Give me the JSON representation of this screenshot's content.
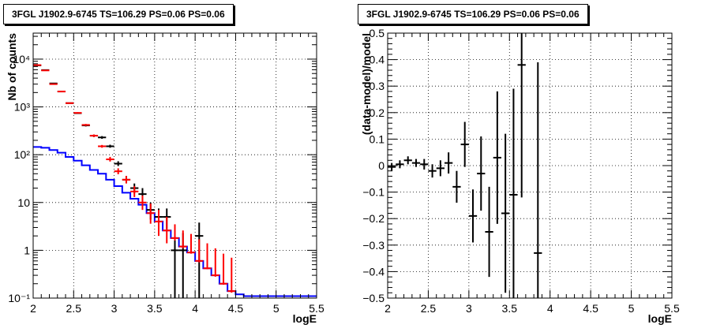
{
  "chart_data": [
    {
      "type": "line",
      "title": "3FGL J1902.9-6745 TS=106.29 PS=0.06 PS=0.06",
      "xlabel": "logE",
      "ylabel": "Nb of counts",
      "xlim": [
        2,
        5.5
      ],
      "ylim": [
        0.1,
        35000
      ],
      "yscale": "log",
      "grid": true,
      "x_ticks": [
        "2",
        "2.5",
        "3",
        "3.5",
        "4",
        "4.5",
        "5",
        "5.5"
      ],
      "y_ticks": [
        "10⁻¹",
        "1",
        "10",
        "10²",
        "10³",
        "10⁴"
      ],
      "colors": {
        "model": "#0000ff",
        "sum_model": "#ff0000",
        "data": "#000000"
      },
      "series": [
        {
          "kind": "step",
          "color": "#0000ff",
          "x_edges": [
            2.0,
            2.1,
            2.2,
            2.3,
            2.4,
            2.5,
            2.6,
            2.7,
            2.8,
            2.9,
            3.0,
            3.1,
            3.2,
            3.3,
            3.4,
            3.5,
            3.6,
            3.7,
            3.8,
            3.9,
            4.0,
            4.1,
            4.2,
            4.3,
            4.4,
            4.5,
            4.6,
            5.5
          ],
          "values": [
            145,
            140,
            125,
            110,
            90,
            75,
            60,
            48,
            40,
            30,
            22,
            16,
            12,
            9,
            6,
            4,
            2.6,
            1.8,
            1.2,
            0.9,
            0.6,
            0.42,
            0.3,
            0.2,
            0.14,
            0.12,
            0.11
          ]
        },
        {
          "kind": "errorbar",
          "color": "#ff0000",
          "x": [
            2.05,
            2.15,
            2.25,
            2.35,
            2.45,
            2.55,
            2.65,
            2.75,
            2.85,
            2.95,
            3.05,
            3.15,
            3.25,
            3.35,
            3.45,
            3.55,
            3.65,
            3.75,
            3.85,
            3.95,
            4.05,
            4.15,
            4.25,
            4.35,
            4.45
          ],
          "y": [
            7500,
            5800,
            3000,
            2100,
            1200,
            750,
            420,
            250,
            150,
            80,
            45,
            30,
            17,
            10,
            6,
            4,
            2.6,
            1.8,
            1.2,
            0.9,
            0.6,
            0.42,
            0.3,
            0.2,
            0.14
          ],
          "y_err_low": [
            7400,
            5700,
            2950,
            2060,
            1170,
            725,
            400,
            235,
            140,
            72,
            39,
            25,
            13,
            7,
            3.6,
            2,
            1.4,
            1.6,
            1.1,
            0.85,
            0.56,
            0.4,
            0.28,
            0.19,
            0.13
          ],
          "y_err_high": [
            7600,
            5900,
            3050,
            2140,
            1230,
            775,
            440,
            265,
            160,
            90,
            52,
            36,
            22,
            14,
            9.5,
            7,
            5,
            3.5,
            2.6,
            2.2,
            1.7,
            1.4,
            1.1,
            0.85,
            0.7
          ]
        },
        {
          "kind": "errorbar",
          "color": "#000000",
          "x": [
            2.05,
            2.15,
            2.25,
            2.35,
            2.45,
            2.55,
            2.65,
            2.75,
            2.85,
            2.95,
            3.05,
            3.15,
            3.25,
            3.35,
            3.45,
            3.55,
            3.65,
            3.75,
            3.85,
            4.05
          ],
          "y": [
            7400,
            5900,
            3100,
            2100,
            1200,
            740,
            410,
            250,
            230,
            150,
            65,
            30,
            20,
            15,
            7,
            5,
            5,
            1,
            1,
            2
          ],
          "y_err_low": [
            7300,
            5800,
            3050,
            2060,
            1170,
            715,
            390,
            235,
            215,
            140,
            58,
            26,
            15.5,
            11,
            4.4,
            2.8,
            2.8,
            0.1,
            0.1,
            0.1
          ],
          "y_err_high": [
            7500,
            6000,
            3150,
            2140,
            1230,
            765,
            430,
            265,
            245,
            162,
            73,
            36,
            25,
            20,
            10,
            7.5,
            7.5,
            2.3,
            2.3,
            3.8
          ]
        }
      ]
    },
    {
      "type": "scatter",
      "title": "3FGL J1902.9-6745 TS=106.29 PS=0.06 PS=0.06",
      "xlabel": "logE",
      "ylabel": "(data-model)/model",
      "xlim": [
        2,
        5.5
      ],
      "ylim": [
        -0.5,
        0.5
      ],
      "grid": true,
      "x_ticks": [
        "2",
        "2.5",
        "3",
        "3.5",
        "4",
        "4.5",
        "5",
        "5.5"
      ],
      "y_ticks": [
        "−0.5",
        "−0.4",
        "−0.3",
        "−0.2",
        "−0.1",
        "0",
        "0.1",
        "0.2",
        "0.3",
        "0.4",
        "0.5"
      ],
      "series": [
        {
          "kind": "errorbar",
          "color": "#000000",
          "x": [
            2.05,
            2.15,
            2.25,
            2.35,
            2.45,
            2.55,
            2.65,
            2.75,
            2.85,
            2.95,
            3.05,
            3.15,
            3.25,
            3.35,
            3.45,
            3.55,
            3.65,
            3.85
          ],
          "y": [
            -0.005,
            0.005,
            0.02,
            0.01,
            0.005,
            -0.02,
            -0.01,
            0.01,
            -0.08,
            0.08,
            -0.19,
            -0.03,
            -0.25,
            0.03,
            -0.18,
            -0.11,
            0.38,
            -0.33
          ],
          "y_err": [
            0.015,
            0.015,
            0.015,
            0.015,
            0.02,
            0.025,
            0.03,
            0.04,
            0.06,
            0.085,
            0.1,
            0.14,
            0.17,
            0.25,
            0.3,
            0.4,
            0.5,
            0.72
          ]
        }
      ]
    }
  ]
}
